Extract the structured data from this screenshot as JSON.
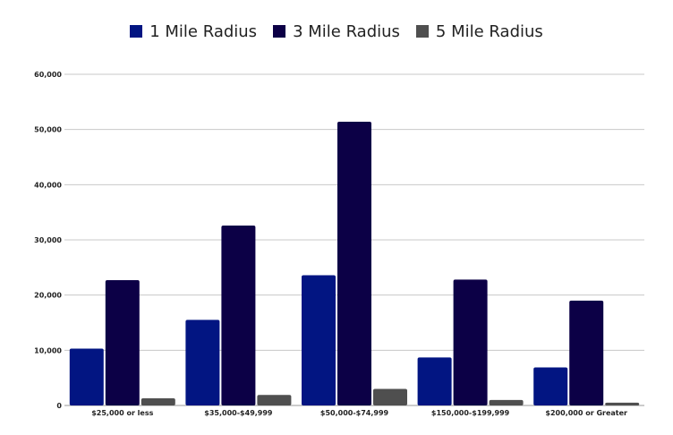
{
  "chart_data": {
    "type": "bar",
    "categories": [
      "$25,000 or less",
      "$35,000-$49,999",
      "$50,000-$74,999",
      "$150,000-$199,999",
      "$200,000 or Greater"
    ],
    "series": [
      {
        "name": "1 Mile Radius",
        "color": "#021582",
        "values": [
          10300,
          15500,
          23600,
          8700,
          6900
        ]
      },
      {
        "name": "3 Mile Radius",
        "color": "#0c0046",
        "values": [
          22700,
          32600,
          51400,
          22800,
          19000
        ]
      },
      {
        "name": "5 Mile Radius",
        "color": "#4f4f4f",
        "values": [
          1300,
          1900,
          3000,
          1000,
          500
        ]
      }
    ],
    "yticks": [
      "0",
      "10,000",
      "20,000",
      "30,000",
      "40,000",
      "50,000",
      "60,000"
    ],
    "ylim": [
      0,
      60000
    ],
    "grid": true,
    "legend_position": "top-center"
  }
}
